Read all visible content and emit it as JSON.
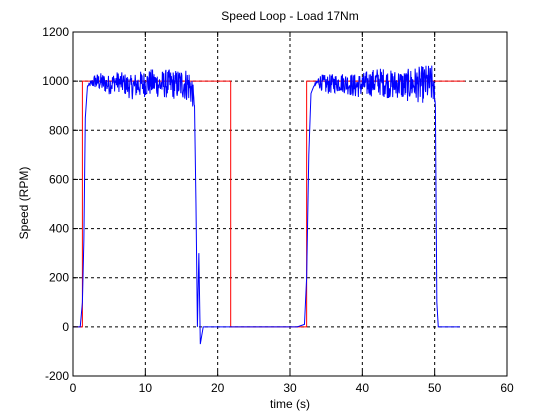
{
  "chart_data": {
    "type": "line",
    "title": "Speed Loop - Load 17Nm",
    "xlabel": "time (s)",
    "ylabel": "Speed (RPM)",
    "xlim": [
      0,
      60
    ],
    "ylim": [
      -200,
      1200
    ],
    "xticks": [
      0,
      10,
      20,
      30,
      40,
      50,
      60
    ],
    "yticks": [
      -200,
      0,
      200,
      400,
      600,
      800,
      1000,
      1200
    ],
    "grid": true,
    "series": [
      {
        "color": "#ff0000",
        "x": [
          0,
          1.3,
          1.3,
          21.8,
          21.8,
          32.3,
          32.3,
          54.2
        ],
        "y": [
          0,
          0,
          1000,
          1000,
          0,
          0,
          1000,
          1000
        ]
      },
      {
        "color": "#0000ff",
        "x": [
          0,
          1.0,
          1.3,
          1.5,
          1.7,
          2.0,
          3,
          4,
          5,
          6,
          7,
          8,
          9,
          10,
          11,
          12,
          13,
          14,
          15,
          16,
          16.5,
          16.8,
          17.0,
          17.2,
          17.4,
          17.6,
          18,
          20,
          22,
          25,
          28,
          31,
          32.0,
          32.3,
          32.6,
          32.9,
          33.3,
          34,
          35,
          36,
          37,
          38,
          39,
          40,
          41,
          42,
          43,
          44,
          45,
          46,
          47,
          48,
          49,
          49.8,
          50.1,
          50.3,
          50.5,
          51,
          53.5
        ],
        "y": [
          0,
          0,
          100,
          350,
          850,
          980,
          1000,
          995,
          985,
          1000,
          990,
          975,
          985,
          990,
          995,
          985,
          990,
          985,
          990,
          985,
          960,
          900,
          500,
          0,
          300,
          -70,
          0,
          0,
          0,
          0,
          0,
          0,
          10,
          200,
          700,
          950,
          980,
          1000,
          985,
          990,
          995,
          990,
          980,
          985,
          990,
          1000,
          995,
          985,
          990,
          980,
          990,
          985,
          990,
          985,
          900,
          100,
          0,
          0,
          0
        ],
        "noise": [
          0,
          0,
          0,
          0,
          0,
          0,
          30,
          40,
          40,
          40,
          45,
          50,
          55,
          55,
          55,
          55,
          60,
          60,
          65,
          70,
          70,
          0,
          0,
          0,
          0,
          0,
          0,
          0,
          0,
          0,
          0,
          0,
          0,
          0,
          0,
          0,
          0,
          30,
          40,
          40,
          40,
          45,
          50,
          50,
          55,
          55,
          60,
          60,
          60,
          65,
          70,
          75,
          80,
          80,
          0,
          0,
          0,
          0,
          0
        ]
      }
    ]
  }
}
